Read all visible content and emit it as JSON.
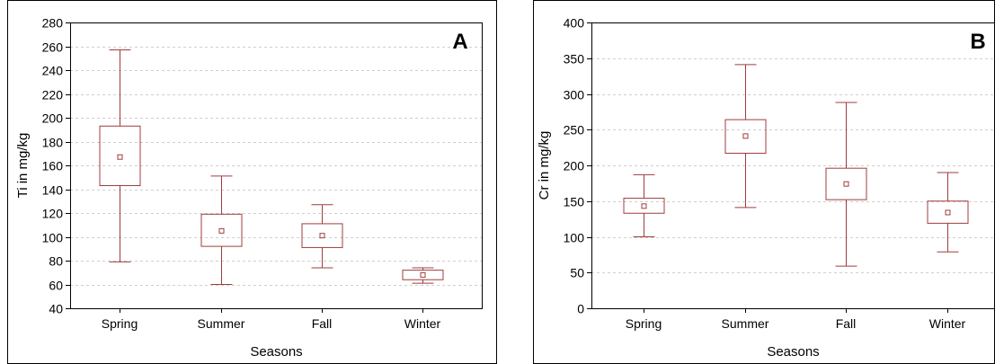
{
  "chart_data": [
    {
      "type": "box",
      "panel_label": "A",
      "xlabel": "Seasons",
      "ylabel": "Ti in mg/kg",
      "ylim": [
        40,
        280
      ],
      "yticks": [
        40,
        60,
        80,
        100,
        120,
        140,
        160,
        180,
        200,
        220,
        240,
        260,
        280
      ],
      "grid": true,
      "categories": [
        "Spring",
        "Summer",
        "Fall",
        "Winter"
      ],
      "boxes": [
        {
          "category": "Spring",
          "whisker_low": 79,
          "q1": 143,
          "mean": 167,
          "q3": 193,
          "whisker_high": 257
        },
        {
          "category": "Summer",
          "whisker_low": 60,
          "q1": 92,
          "mean": 105,
          "q3": 119,
          "whisker_high": 151
        },
        {
          "category": "Fall",
          "whisker_low": 74,
          "q1": 91,
          "mean": 101,
          "q3": 111,
          "whisker_high": 127
        },
        {
          "category": "Winter",
          "whisker_low": 61,
          "q1": 64,
          "mean": 68,
          "q3": 72,
          "whisker_high": 74
        }
      ]
    },
    {
      "type": "box",
      "panel_label": "B",
      "xlabel": "Seasons",
      "ylabel": "Cr in mg/kg",
      "ylim": [
        0,
        400
      ],
      "yticks": [
        0,
        50,
        100,
        150,
        200,
        250,
        300,
        350,
        400
      ],
      "grid": true,
      "categories": [
        "Spring",
        "Summer",
        "Fall",
        "Winter"
      ],
      "boxes": [
        {
          "category": "Spring",
          "whisker_low": 100,
          "q1": 133,
          "mean": 143,
          "q3": 154,
          "whisker_high": 187
        },
        {
          "category": "Summer",
          "whisker_low": 141,
          "q1": 217,
          "mean": 241,
          "q3": 264,
          "whisker_high": 341
        },
        {
          "category": "Fall",
          "whisker_low": 59,
          "q1": 152,
          "mean": 174,
          "q3": 196,
          "whisker_high": 288
        },
        {
          "category": "Winter",
          "whisker_low": 79,
          "q1": 119,
          "mean": 134,
          "q3": 150,
          "whisker_high": 190
        }
      ]
    }
  ],
  "colors": {
    "box": "#a03c3c",
    "grid": "#cfcfcf",
    "axis": "#000000"
  }
}
